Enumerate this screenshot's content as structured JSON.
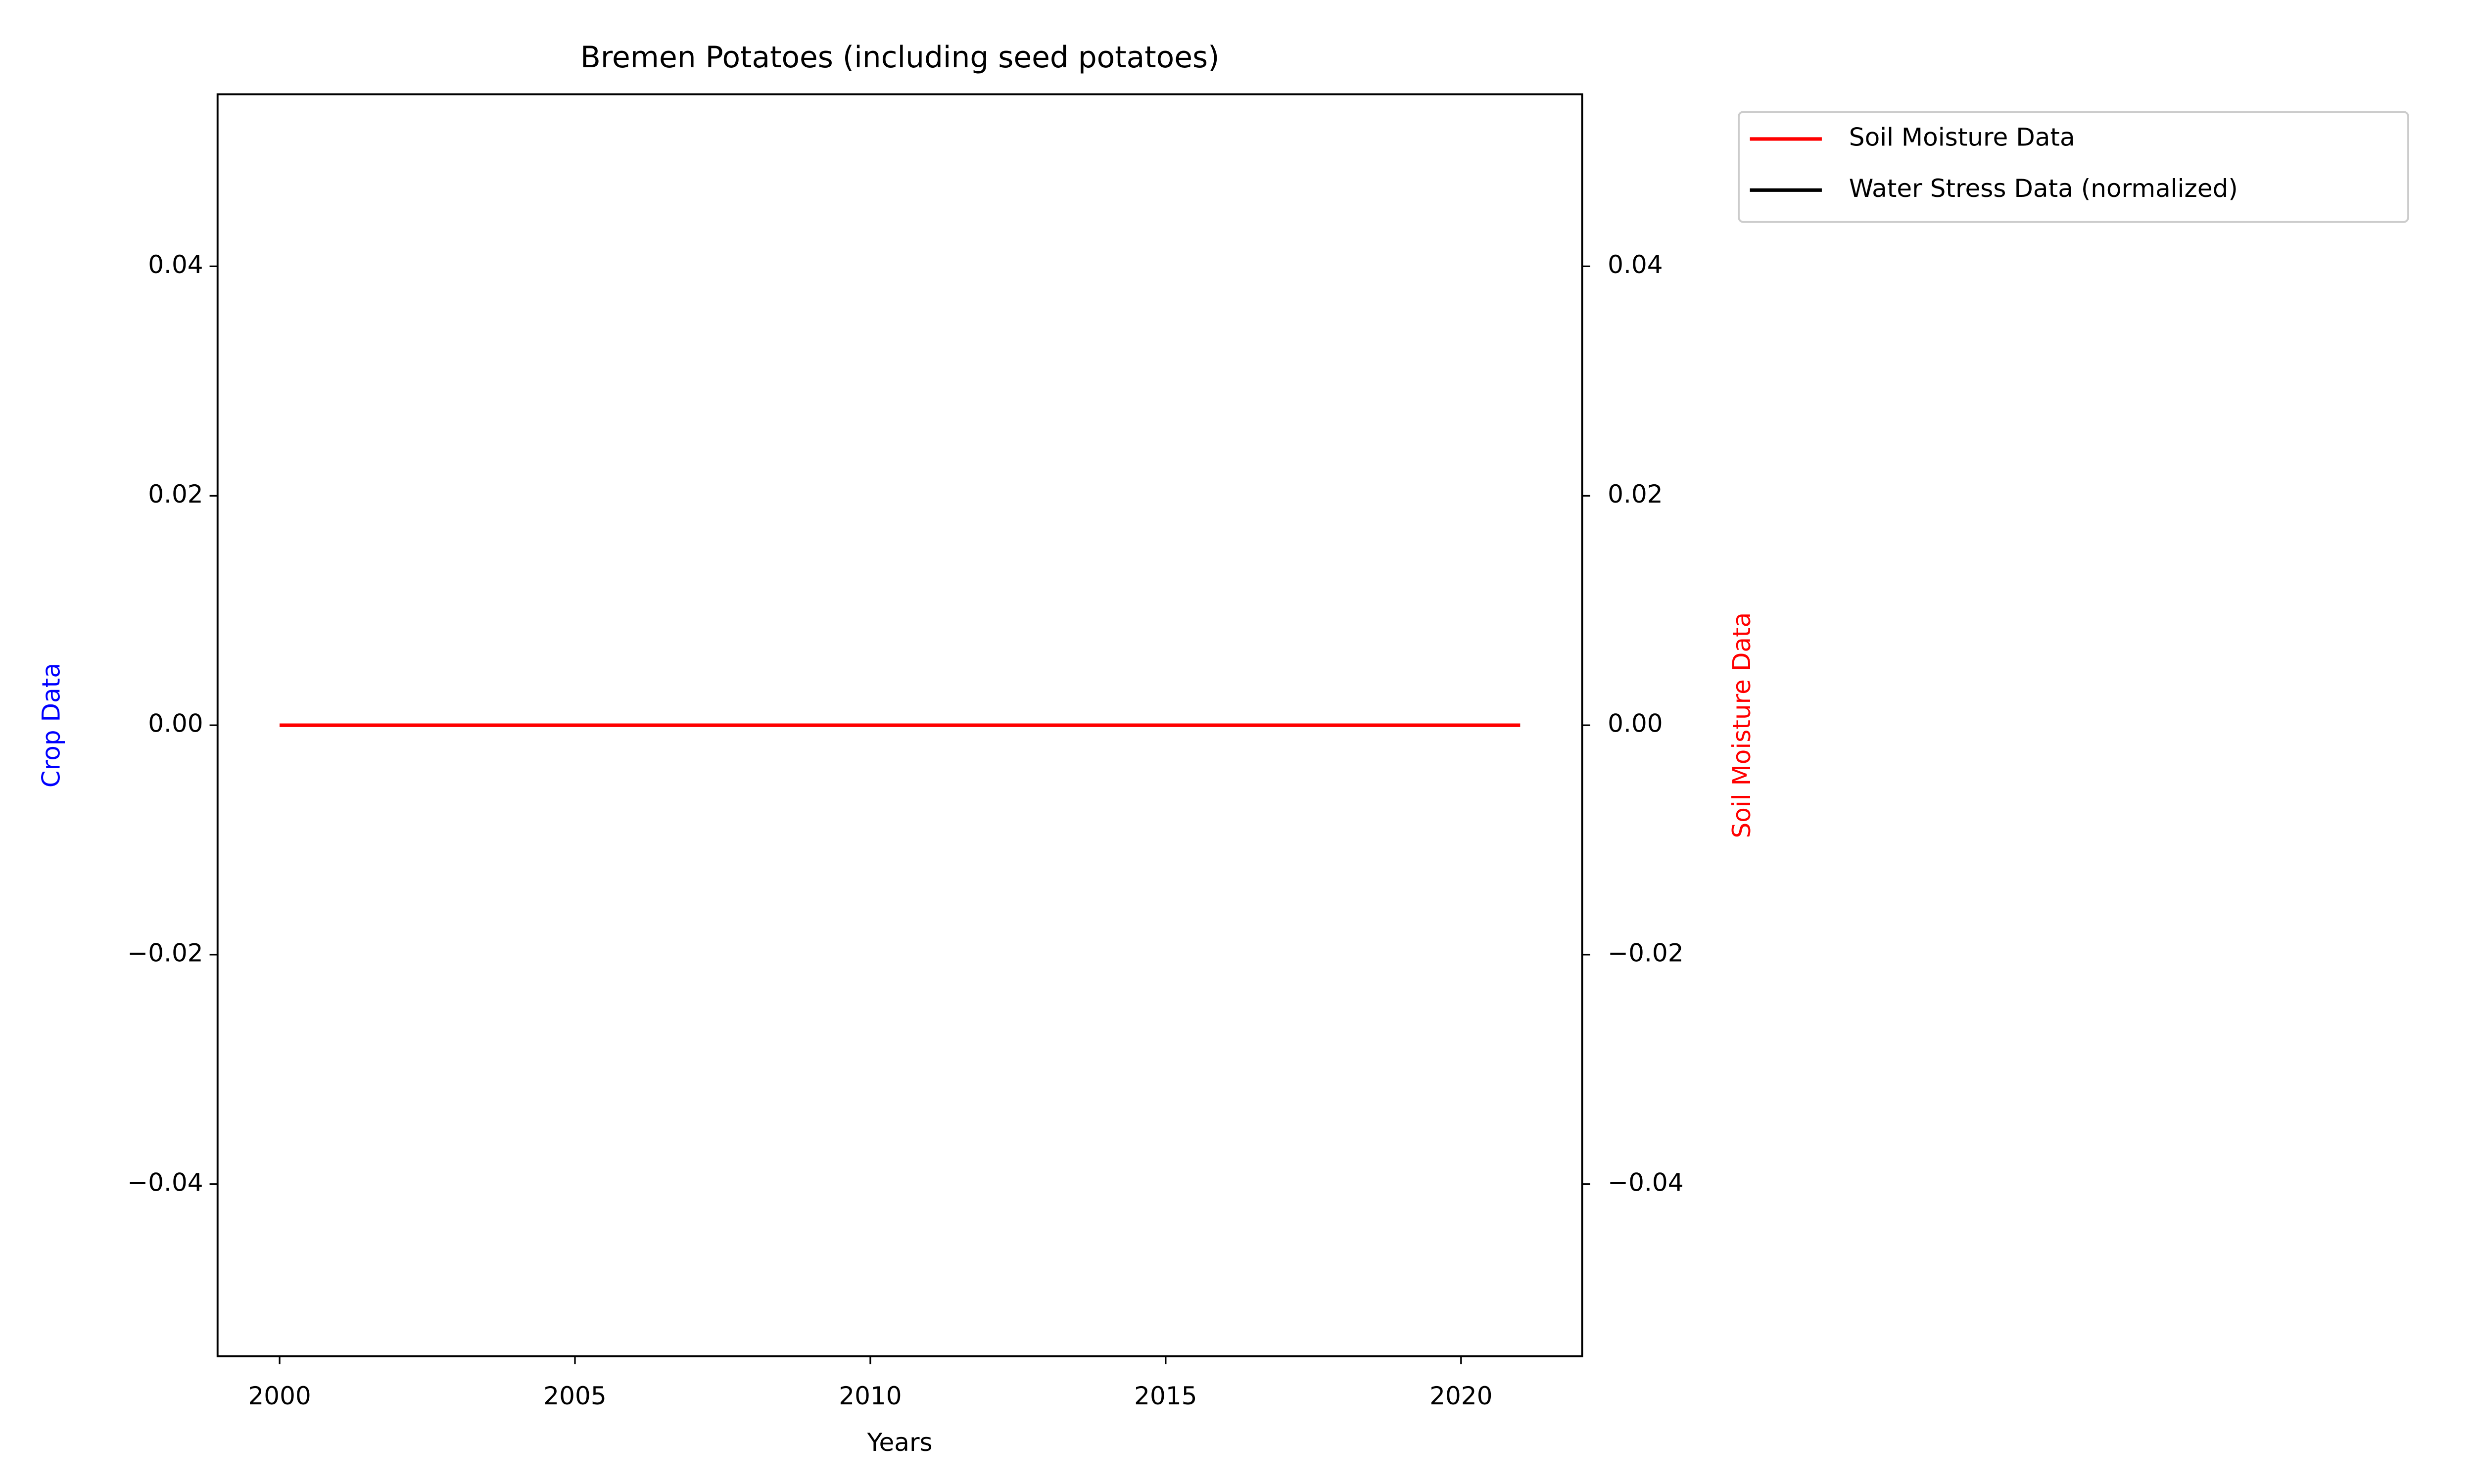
{
  "chart_data": {
    "type": "line",
    "title": "Bremen Potatoes (including seed potatoes)",
    "x_label": "Years",
    "y_label": "Crop Data",
    "y2_label": "Soil Moisture Data",
    "x": [
      2000,
      2001,
      2002,
      2003,
      2004,
      2005,
      2006,
      2007,
      2008,
      2009,
      2010,
      2011,
      2012,
      2013,
      2014,
      2015,
      2016,
      2017,
      2018,
      2019,
      2020,
      2021
    ],
    "series": [
      {
        "name": "Soil Moisture Data",
        "color": "#ff0000",
        "axis": "y2",
        "values": [
          0,
          0,
          0,
          0,
          0,
          0,
          0,
          0,
          0,
          0,
          0,
          0,
          0,
          0,
          0,
          0,
          0,
          0,
          0,
          0,
          0,
          0
        ]
      },
      {
        "name": "Water Stress Data (normalized)",
        "color": "#000000",
        "axis": "y2",
        "values": [
          0,
          0,
          0,
          0,
          0,
          0,
          0,
          0,
          0,
          0,
          0,
          0,
          0,
          0,
          0,
          0,
          0,
          0,
          0,
          0,
          0,
          0
        ]
      }
    ],
    "y_label_color": "#0000ff",
    "y2_label_color": "#ff0000",
    "xlim": [
      1998.95,
      2022.05
    ],
    "xticks": [
      2000,
      2005,
      2010,
      2015,
      2020
    ],
    "ylim": [
      -0.055,
      0.055
    ],
    "yticks": [
      {
        "value": -0.04,
        "label": "−0.04"
      },
      {
        "value": -0.02,
        "label": "−0.02"
      },
      {
        "value": 0,
        "label": "0.00"
      },
      0.02,
      0.04
    ],
    "y2lim": [
      -0.055,
      0.055
    ],
    "y2ticks": [
      {
        "value": -0.04,
        "label": "−0.04"
      },
      {
        "value": -0.02,
        "label": "−0.02"
      },
      {
        "value": 0,
        "label": "0.00"
      },
      0.02,
      0.04
    ],
    "grid": false,
    "legend": "outside upper right"
  }
}
